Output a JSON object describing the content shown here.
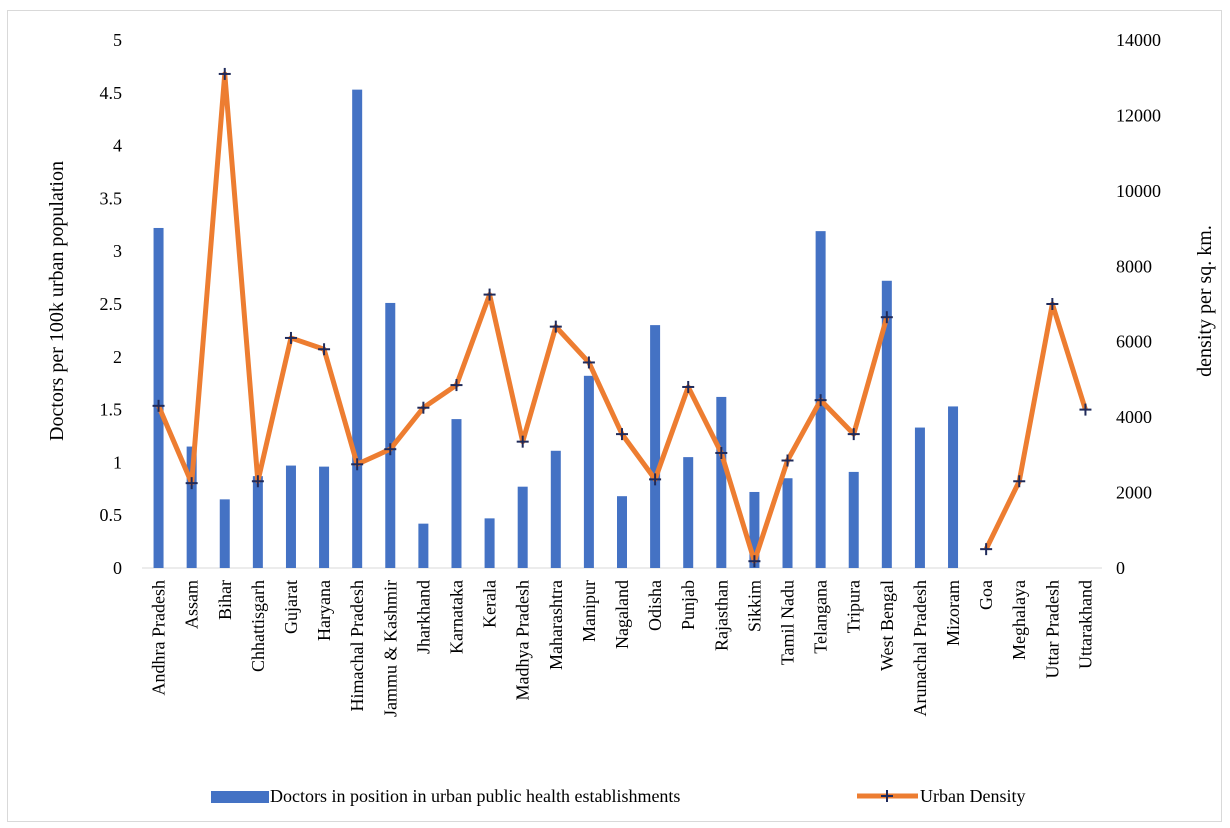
{
  "chart_data": {
    "type": "bar+line",
    "categories": [
      "Andhra Pradesh",
      "Assam",
      "Bihar",
      "Chhattisgarh",
      "Gujarat",
      "Haryana",
      "Himachal Pradesh",
      "Jammu & Kashmir",
      "Jharkhand",
      "Karnataka",
      "Kerala",
      "Madhya Pradesh",
      "Maharashtra",
      "Manipur",
      "Nagaland",
      "Odisha",
      "Punjab",
      "Rajasthan",
      "Sikkim",
      "Tamil Nadu",
      "Telangana",
      "Tripura",
      "West Bengal",
      "Arunachal Pradesh",
      "Mizoram",
      "Goa",
      "Meghalaya",
      "Uttar Pradesh",
      "Uttarakhand"
    ],
    "series": [
      {
        "name": "Doctors in position in urban public health establishments",
        "kind": "bar",
        "axis": "left",
        "color": "#4472C4",
        "values": [
          3.22,
          1.15,
          0.65,
          0.87,
          0.97,
          0.96,
          4.53,
          2.51,
          0.42,
          1.41,
          0.47,
          0.77,
          1.11,
          1.82,
          0.68,
          2.3,
          1.05,
          1.62,
          0.72,
          0.85,
          3.19,
          0.91,
          2.72,
          1.33,
          1.53,
          null,
          null,
          null,
          null
        ]
      },
      {
        "name": "Urban Density",
        "kind": "line",
        "axis": "right",
        "color": "#ED7D31",
        "marker": "plus",
        "values": [
          4300,
          2250,
          13100,
          2300,
          6100,
          5800,
          2750,
          3150,
          4250,
          4850,
          7250,
          3350,
          6400,
          5450,
          3550,
          2350,
          4800,
          3050,
          180,
          2850,
          4450,
          3550,
          6650,
          null,
          null,
          500,
          2300,
          7000,
          4200
        ]
      }
    ],
    "ylabel": "Doctors per 100k urban population",
    "y2label": "density per sq. km.",
    "ylim": [
      0,
      5
    ],
    "y2lim": [
      0,
      14000
    ],
    "yticks": [
      "0",
      "0.5",
      "1",
      "1.5",
      "2",
      "2.5",
      "3",
      "3.5",
      "4",
      "4.5",
      "5"
    ],
    "y2ticks": [
      "0",
      "2000",
      "4000",
      "6000",
      "8000",
      "10000",
      "12000",
      "14000"
    ],
    "legend_position": "bottom",
    "grid": false
  }
}
